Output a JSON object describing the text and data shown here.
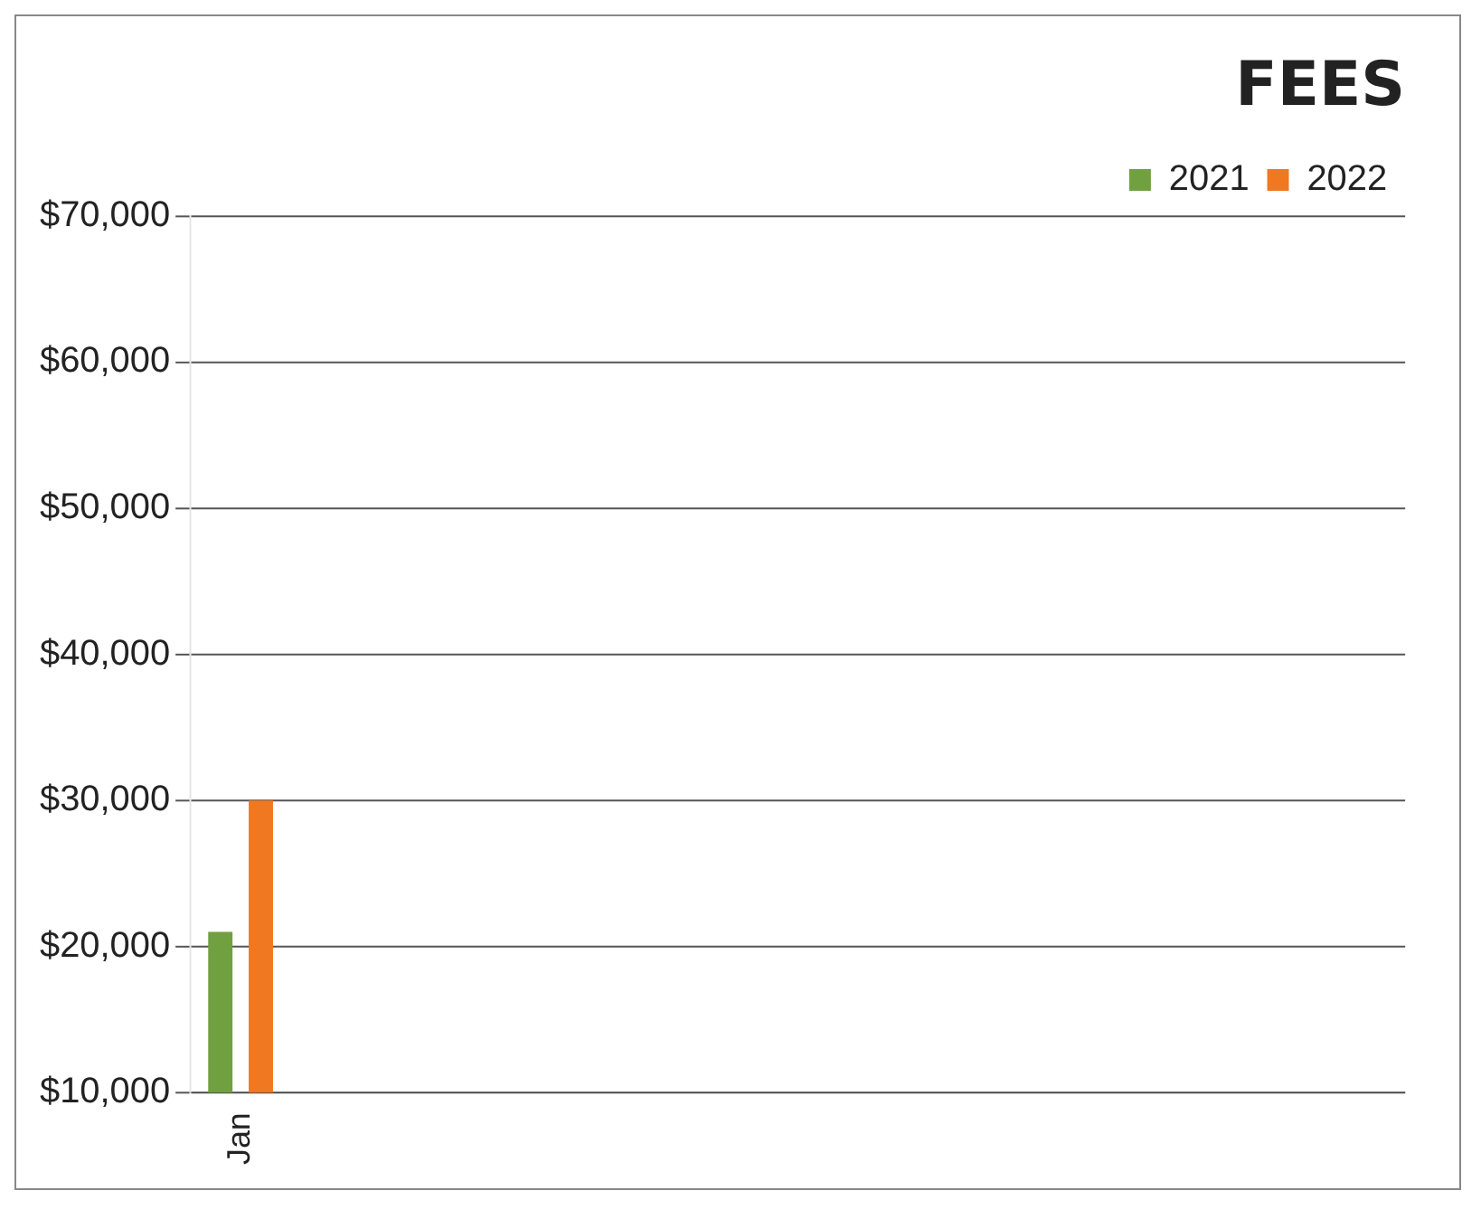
{
  "chart_data": {
    "type": "bar",
    "title": "FEES",
    "categories": [
      "Jan",
      null,
      null,
      null,
      null,
      null,
      null,
      null,
      null,
      null,
      null,
      null
    ],
    "series": [
      {
        "name": "2021",
        "color": "#70a040",
        "values": [
          21000,
          null,
          null,
          null,
          null,
          null,
          null,
          null,
          null,
          null,
          null,
          null
        ]
      },
      {
        "name": "2022",
        "color": "#f07820",
        "values": [
          30000,
          null,
          null,
          null,
          null,
          null,
          null,
          null,
          null,
          null,
          null,
          null
        ]
      }
    ],
    "ylim": [
      10000,
      70000
    ],
    "yticks": [
      {
        "value": 10000,
        "label": "$10,000"
      },
      {
        "value": 20000,
        "label": "$20,000"
      },
      {
        "value": 30000,
        "label": "$30,000"
      },
      {
        "value": 40000,
        "label": "$40,000"
      },
      {
        "value": 50000,
        "label": "$50,000"
      },
      {
        "value": 60000,
        "label": "$60,000"
      },
      {
        "value": 70000,
        "label": "$70,000"
      }
    ],
    "grid": "y",
    "legend": "top right"
  }
}
